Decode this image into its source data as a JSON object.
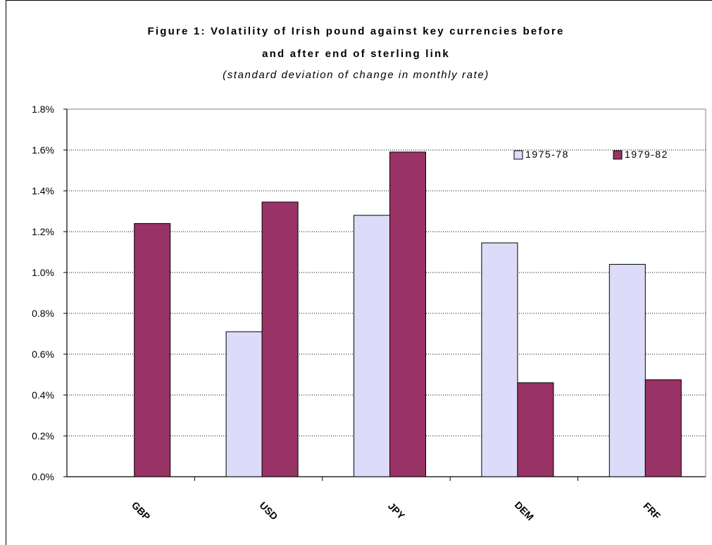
{
  "title_line1": "Figure 1: Volatility of Irish pound against key currencies before",
  "title_line2": "and after end of sterling link",
  "subtitle": "(standard deviation of change in monthly rate)",
  "chart_data": {
    "type": "bar",
    "categories": [
      "GBP",
      "USD",
      "JPY",
      "DEM",
      "FRF"
    ],
    "series": [
      {
        "name": "1975-78",
        "values": [
          0.0,
          0.71,
          1.28,
          1.145,
          1.04
        ],
        "color": "#dcdcfa"
      },
      {
        "name": "1979-82",
        "values": [
          1.24,
          1.345,
          1.59,
          0.46,
          0.475
        ],
        "color": "#993366"
      }
    ],
    "ylim": [
      0,
      1.8
    ],
    "yticks": [
      "0.0%",
      "0.2%",
      "0.4%",
      "0.6%",
      "0.8%",
      "1.0%",
      "1.2%",
      "1.4%",
      "1.6%",
      "1.8%"
    ],
    "ytick_step": 0.2,
    "grid": "dotted horizontal",
    "legend_position": "top-right"
  }
}
